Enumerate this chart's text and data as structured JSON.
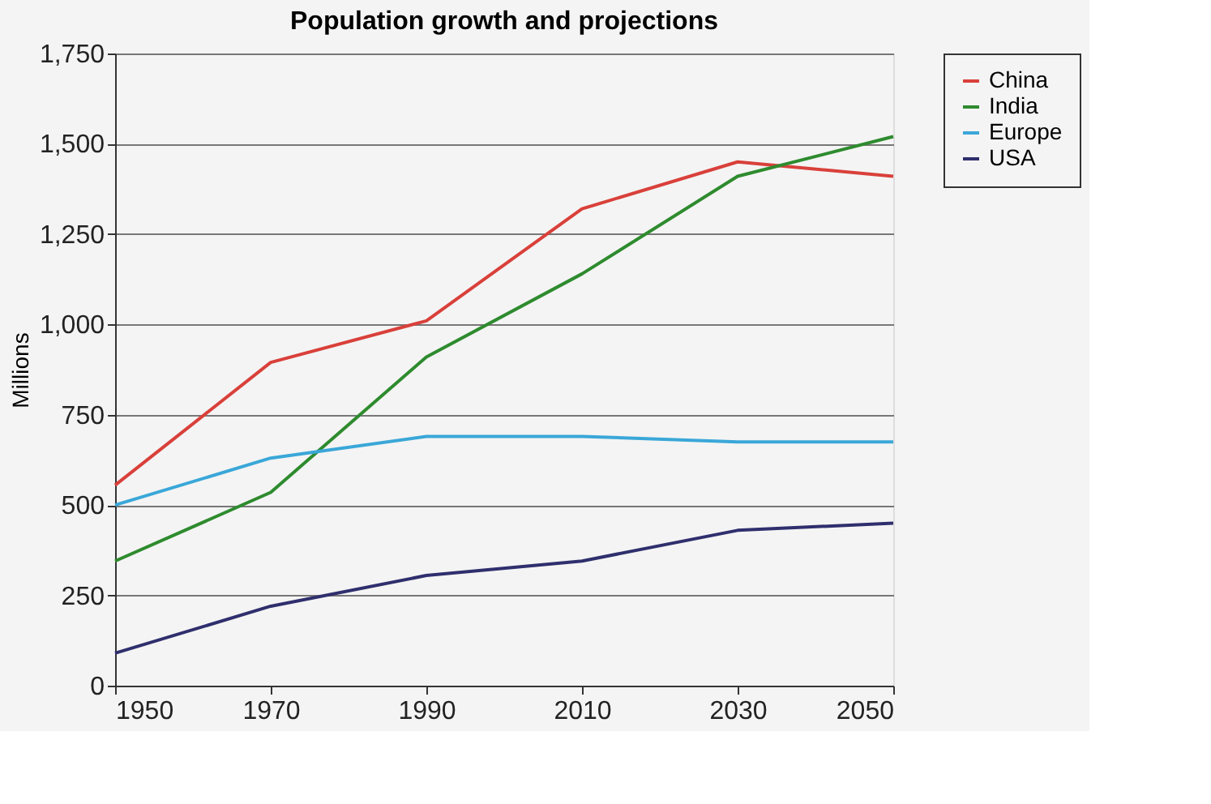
{
  "chart_data": {
    "type": "line",
    "title": "Population growth and projections",
    "ylabel": "Millions",
    "x": [
      1950,
      1970,
      1990,
      2010,
      2030,
      2050
    ],
    "xlim": [
      1950,
      2050
    ],
    "xticks": [
      1950,
      1970,
      1990,
      2010,
      2030,
      2050
    ],
    "ylim": [
      0,
      1750
    ],
    "yticks": [
      0,
      {
        "value": 250,
        "label": "250"
      },
      {
        "value": 500,
        "label": "500"
      },
      {
        "value": 750,
        "label": "750"
      },
      {
        "value": 1000,
        "label": "1,000"
      },
      {
        "value": 1250,
        "label": "1,250"
      },
      {
        "value": 1500,
        "label": "1,500"
      },
      {
        "value": 1750,
        "label": "1,750"
      }
    ],
    "grid": "y",
    "legend": "top right",
    "marker": "none",
    "line_style": "solid",
    "series": [
      {
        "name": "China",
        "color": "#d9403a",
        "values": [
          555,
          895,
          1010,
          1320,
          1450,
          1410
        ]
      },
      {
        "name": "India",
        "color": "#2e8b2e",
        "values": [
          345,
          535,
          910,
          1140,
          1410,
          1520
        ]
      },
      {
        "name": "Europe",
        "color": "#3aa7d8",
        "values": [
          500,
          630,
          690,
          690,
          675,
          675
        ]
      },
      {
        "name": "USA",
        "color": "#2f2f6e",
        "values": [
          90,
          220,
          305,
          345,
          430,
          450
        ]
      }
    ]
  }
}
